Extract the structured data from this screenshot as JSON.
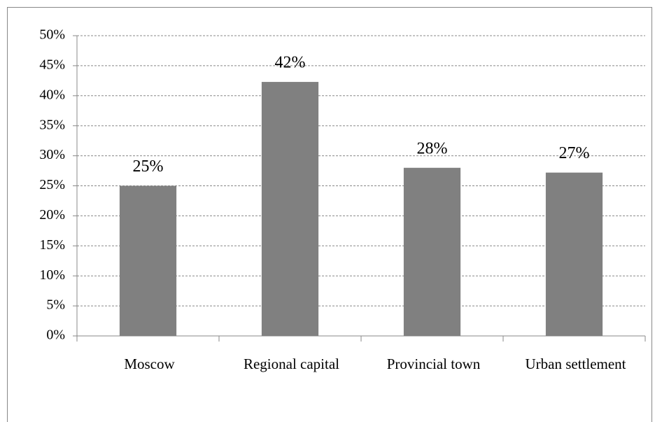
{
  "chart_data": {
    "type": "bar",
    "categories": [
      "Moscow",
      "Regional capital",
      "Provincial town",
      "Urban settlement"
    ],
    "values": [
      25,
      42.3,
      28,
      27.2
    ],
    "value_labels": [
      "25%",
      "42%",
      "28%",
      "27%"
    ],
    "color": "#808080",
    "ylim": [
      0,
      50
    ],
    "yticks": [
      {
        "value": 0,
        "label": "0%"
      },
      {
        "value": 5,
        "label": "5%"
      },
      {
        "value": 10,
        "label": "10%"
      },
      {
        "value": 15,
        "label": "15%"
      },
      {
        "value": 20,
        "label": "20%"
      },
      {
        "value": 25,
        "label": "25%"
      },
      {
        "value": 30,
        "label": "30%"
      },
      {
        "value": 35,
        "label": "35%"
      },
      {
        "value": 40,
        "label": "40%"
      },
      {
        "value": 45,
        "label": "45%"
      },
      {
        "value": 50,
        "label": "50%"
      }
    ],
    "grid": true
  }
}
